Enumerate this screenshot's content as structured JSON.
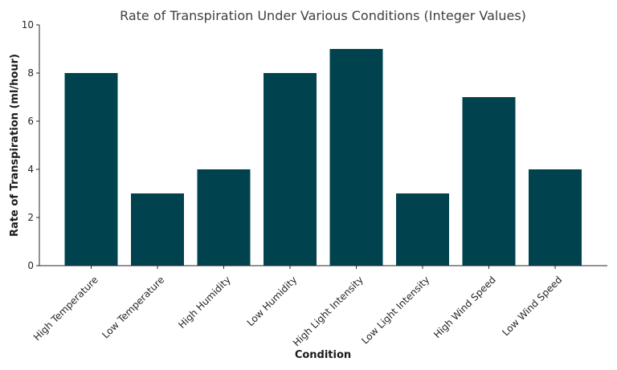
{
  "chart_data": {
    "type": "bar",
    "title": "Rate of Transpiration Under Various Conditions (Integer Values)",
    "xlabel": "Condition",
    "ylabel": "Rate of Transpiration (ml/hour)",
    "categories": [
      "High Temperature",
      "Low Temperature",
      "High Humidity",
      "Low Humidity",
      "High Light Intensity",
      "Low Light Intensity",
      "High Wind Speed",
      "Low Wind Speed"
    ],
    "values": [
      8,
      3,
      4,
      8,
      9,
      3,
      7,
      4
    ],
    "ylim": [
      0,
      10
    ],
    "yticks": [
      0,
      2,
      4,
      6,
      8,
      10
    ],
    "grid": false,
    "bar_color": "#00434f"
  }
}
